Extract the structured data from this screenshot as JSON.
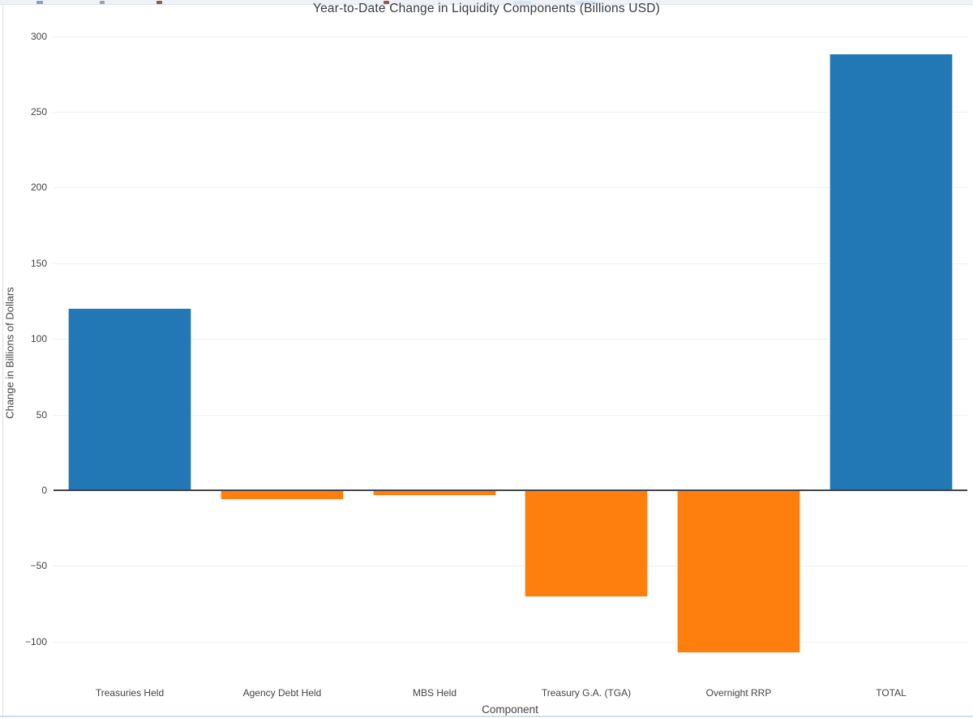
{
  "browser_strip": {
    "specks": [
      {
        "x": 45,
        "w": 8,
        "color": "#7fa3c4"
      },
      {
        "x": 123,
        "w": 6,
        "color": "#9aa4ad"
      },
      {
        "x": 193,
        "w": 7,
        "color": "#8f5a4e"
      },
      {
        "x": 473,
        "w": 7,
        "color": "#a0524a"
      },
      {
        "x": 633,
        "w": 22,
        "color": "#d3e6f3"
      },
      {
        "x": 710,
        "w": 24,
        "color": "#d3e6f3"
      }
    ]
  },
  "chart_data": {
    "type": "bar",
    "title": "Year-to-Date Change in Liquidity Components (Billions USD)",
    "xlabel": "Component",
    "ylabel": "Change in Billions of Dollars",
    "categories": [
      "Treasuries Held",
      "Agency Debt Held",
      "MBS Held",
      "Treasury G.A. (TGA)",
      "Overnight RRP",
      "TOTAL"
    ],
    "values": [
      120,
      -6,
      -3,
      -70,
      -107,
      288
    ],
    "positive_color": "#2277b5",
    "negative_color": "#ff7f0e",
    "yticks": [
      300,
      250,
      200,
      150,
      100,
      50,
      0,
      -50,
      -100
    ],
    "ylim": [
      -129,
      310
    ],
    "grid": true,
    "legend": "none",
    "minus_sign": "−"
  }
}
